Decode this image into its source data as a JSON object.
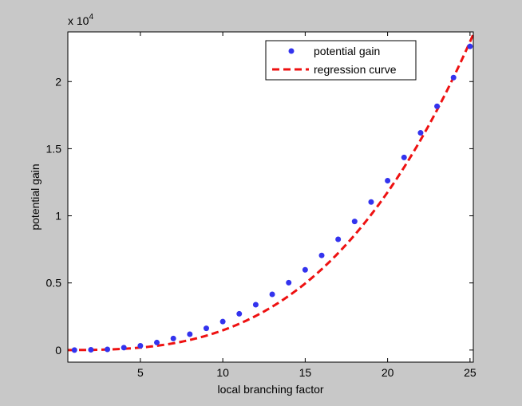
{
  "colors": {
    "figure_background": "#c8c8c8",
    "plot_background": "#ffffff",
    "axis": "#000000",
    "marker": "#3333ee",
    "curve": "#ee1111",
    "legend_frame": "#000000"
  },
  "chart_data": {
    "type": "scatter",
    "xlabel": "local branching factor",
    "ylabel": "potential gain",
    "xlim": [
      0.6,
      25.2
    ],
    "ylim": [
      -900,
      23700
    ],
    "grid": false,
    "legend_position": "top-right",
    "y_multiplier_label": {
      "base": "x 10",
      "exponent": "4"
    },
    "xticks": [
      5,
      10,
      15,
      20,
      25
    ],
    "xtick_labels": [
      "5",
      "10",
      "15",
      "20",
      "25"
    ],
    "yticks": [
      0,
      5000,
      10000,
      15000,
      20000
    ],
    "ytick_labels": [
      "0",
      "0.5",
      "1",
      "1.5",
      "2"
    ],
    "series": [
      {
        "name": "potential gain",
        "kind": "markers",
        "marker": "dot",
        "color": "#3333ee",
        "x": [
          1,
          2,
          3,
          4,
          5,
          6,
          7,
          8,
          9,
          10,
          11,
          12,
          13,
          14,
          15,
          16,
          17,
          18,
          19,
          20,
          21,
          22,
          23,
          24,
          25
        ],
        "y": [
          0,
          20,
          50,
          180,
          320,
          560,
          860,
          1180,
          1620,
          2120,
          2700,
          3380,
          4150,
          5020,
          5980,
          7050,
          8250,
          9580,
          11030,
          12620,
          14350,
          16180,
          18160,
          20300,
          22620
        ]
      },
      {
        "name": "regression curve",
        "kind": "line",
        "style": "dashed",
        "color": "#ee1111",
        "curve_model": {
          "form": "a * x^3",
          "a": 1.47
        },
        "x_range": [
          0.6,
          25.2
        ]
      }
    ]
  }
}
